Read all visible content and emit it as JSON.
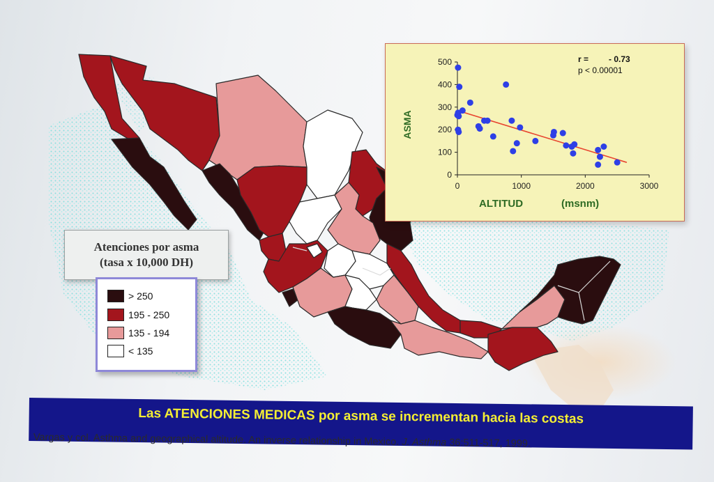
{
  "legend": {
    "title_line1": "Atenciones por asma",
    "title_line2": "(tasa x 10,000 DH)",
    "items": [
      {
        "label": "> 250",
        "color": "#2a0d0f"
      },
      {
        "label": "195 - 250",
        "color": "#a3151d"
      },
      {
        "label": "135 - 194",
        "color": "#e79a9a"
      },
      {
        "label": "< 135",
        "color": "#ffffff"
      }
    ]
  },
  "banner": {
    "text": "Las ATENCIONES MEDICAS por asma se incrementan hacia las costas"
  },
  "citation": {
    "text_before": "Vargas y col. Asthma and geographical altitude. An inverse relationship in Mexico. ",
    "journal": "J. Asthma",
    "text_after": " 36:511-517, 1999."
  },
  "colors": {
    "point": "#2e3fe6",
    "trend": "#e8452f",
    "axis_label": "#2f6b24",
    "panel_bg": "#f6f3b8"
  },
  "chart_data": {
    "type": "scatter",
    "xlabel": "ALTITUD",
    "xunit": "(msnm)",
    "ylabel": "ASMA",
    "xlim": [
      0,
      3000
    ],
    "ylim": [
      0,
      500
    ],
    "xticks": [
      0,
      1000,
      2000,
      3000
    ],
    "yticks": [
      0,
      100,
      200,
      300,
      400,
      500
    ],
    "annotation_r_label": "r =",
    "annotation_r_value": "- 0.73",
    "annotation_p": "p < 0.00001",
    "points": [
      {
        "x": 10,
        "y": 475
      },
      {
        "x": 30,
        "y": 390
      },
      {
        "x": 0,
        "y": 265
      },
      {
        "x": 10,
        "y": 275
      },
      {
        "x": 20,
        "y": 260
      },
      {
        "x": 10,
        "y": 200
      },
      {
        "x": 20,
        "y": 190
      },
      {
        "x": 80,
        "y": 285
      },
      {
        "x": 200,
        "y": 320
      },
      {
        "x": 330,
        "y": 215
      },
      {
        "x": 350,
        "y": 205
      },
      {
        "x": 420,
        "y": 240
      },
      {
        "x": 470,
        "y": 240
      },
      {
        "x": 560,
        "y": 170
      },
      {
        "x": 760,
        "y": 400
      },
      {
        "x": 850,
        "y": 240
      },
      {
        "x": 930,
        "y": 140
      },
      {
        "x": 980,
        "y": 210
      },
      {
        "x": 870,
        "y": 105
      },
      {
        "x": 1220,
        "y": 150
      },
      {
        "x": 1510,
        "y": 190
      },
      {
        "x": 1500,
        "y": 175
      },
      {
        "x": 1650,
        "y": 185
      },
      {
        "x": 1700,
        "y": 130
      },
      {
        "x": 1790,
        "y": 125
      },
      {
        "x": 1830,
        "y": 135
      },
      {
        "x": 1810,
        "y": 95
      },
      {
        "x": 2200,
        "y": 110
      },
      {
        "x": 2230,
        "y": 80
      },
      {
        "x": 2200,
        "y": 45
      },
      {
        "x": 2290,
        "y": 125
      },
      {
        "x": 2500,
        "y": 55
      }
    ],
    "trendline": [
      {
        "x": 0,
        "y": 285
      },
      {
        "x": 2650,
        "y": 55
      }
    ]
  }
}
